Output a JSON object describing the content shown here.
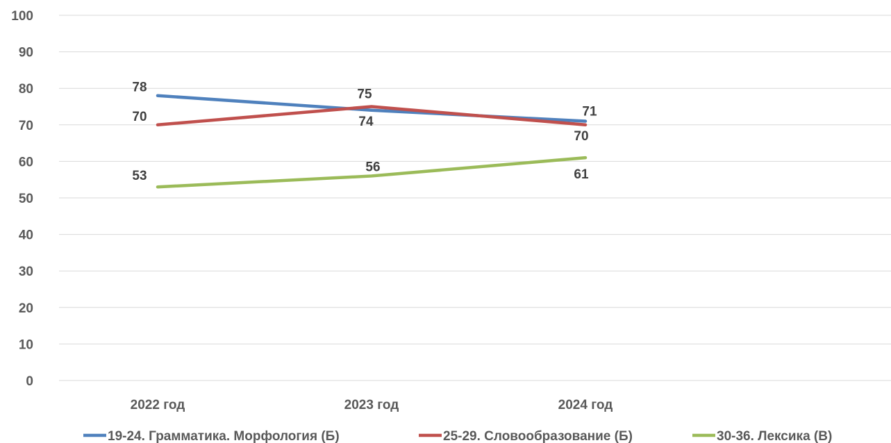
{
  "chart_data": {
    "type": "line",
    "categories": [
      "2022 год",
      "2023 год",
      "2024 год"
    ],
    "series": [
      {
        "name": "19-24. Грамматика. Морфология (Б)",
        "values": [
          78,
          74,
          71
        ],
        "color": "#4f81bd"
      },
      {
        "name": "25-29. Словообразование (Б)",
        "values": [
          70,
          75,
          70
        ],
        "color": "#c0504d"
      },
      {
        "name": "30-36. Лексика (В)",
        "values": [
          53,
          56,
          61
        ],
        "color": "#9bbb59"
      }
    ],
    "ylim": [
      0,
      100
    ],
    "yticks": [
      0,
      10,
      20,
      30,
      40,
      50,
      60,
      70,
      80,
      90,
      100
    ],
    "grid": true,
    "legend_position": "bottom",
    "data_labels": true
  }
}
